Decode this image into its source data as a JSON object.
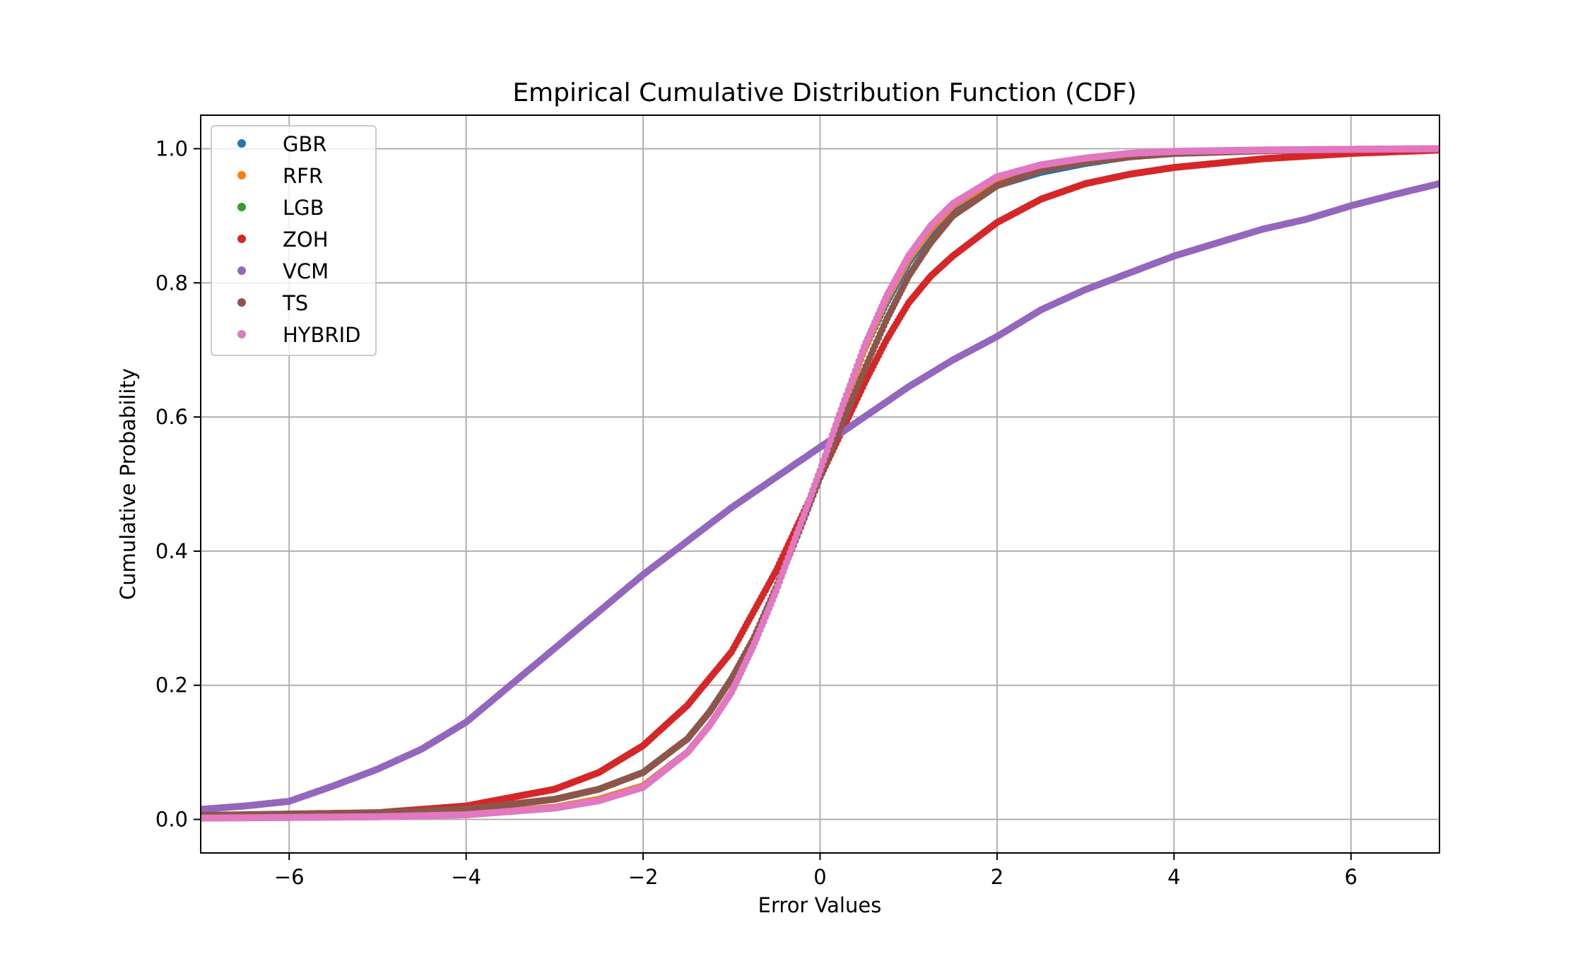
{
  "chart_data": {
    "type": "scatter",
    "title": "Empirical Cumulative Distribution Function (CDF)",
    "xlabel": "Error Values",
    "ylabel": "Cumulative Probability",
    "xlim": [
      -7,
      7
    ],
    "ylim": [
      -0.05,
      1.05
    ],
    "xticks": [
      -6,
      -4,
      -2,
      0,
      2,
      4,
      6
    ],
    "xtick_labels": [
      "−6",
      "−4",
      "−2",
      "0",
      "2",
      "4",
      "6"
    ],
    "yticks": [
      0.0,
      0.2,
      0.4,
      0.6,
      0.8,
      1.0
    ],
    "ytick_labels": [
      "0.0",
      "0.2",
      "0.4",
      "0.6",
      "0.8",
      "1.0"
    ],
    "grid": true,
    "legend_position": "upper-left",
    "series": [
      {
        "name": "GBR",
        "color": "#1f77b4",
        "x": [
          -7,
          -6,
          -5,
          -4,
          -3,
          -2.5,
          -2,
          -1.5,
          -1.25,
          -1,
          -0.75,
          -0.5,
          -0.25,
          0,
          0.25,
          0.5,
          0.75,
          1,
          1.25,
          1.5,
          2,
          2.5,
          3,
          3.5,
          4,
          5,
          6,
          7
        ],
        "y": [
          0.003,
          0.004,
          0.005,
          0.008,
          0.018,
          0.03,
          0.05,
          0.1,
          0.14,
          0.19,
          0.26,
          0.34,
          0.43,
          0.52,
          0.61,
          0.7,
          0.77,
          0.83,
          0.875,
          0.905,
          0.945,
          0.965,
          0.978,
          0.988,
          0.993,
          0.997,
          0.999,
          1.0
        ]
      },
      {
        "name": "RFR",
        "color": "#ff7f0e",
        "x": [
          -7,
          -6,
          -5,
          -4,
          -3,
          -2.5,
          -2,
          -1.5,
          -1.25,
          -1,
          -0.75,
          -0.5,
          -0.25,
          0,
          0.25,
          0.5,
          0.75,
          1,
          1.25,
          1.5,
          2,
          2.5,
          3,
          3.5,
          4,
          5,
          6,
          7
        ],
        "y": [
          0.002,
          0.004,
          0.005,
          0.008,
          0.018,
          0.03,
          0.05,
          0.1,
          0.14,
          0.19,
          0.26,
          0.34,
          0.43,
          0.52,
          0.61,
          0.7,
          0.775,
          0.835,
          0.88,
          0.915,
          0.955,
          0.975,
          0.985,
          0.992,
          0.995,
          0.998,
          0.999,
          1.0
        ]
      },
      {
        "name": "LGB",
        "color": "#2ca02c",
        "x": [
          -7,
          -6,
          -5,
          -4,
          -3,
          -2.5,
          -2,
          -1.5,
          -1.25,
          -1,
          -0.75,
          -0.5,
          -0.25,
          0,
          0.25,
          0.5,
          0.75,
          1,
          1.25,
          1.5,
          2,
          2.5,
          3,
          3.5,
          4,
          5,
          6,
          7
        ],
        "y": [
          0.002,
          0.003,
          0.004,
          0.007,
          0.017,
          0.028,
          0.048,
          0.1,
          0.14,
          0.19,
          0.26,
          0.34,
          0.43,
          0.52,
          0.615,
          0.705,
          0.78,
          0.84,
          0.885,
          0.918,
          0.958,
          0.976,
          0.986,
          0.993,
          0.996,
          0.998,
          0.999,
          1.0
        ]
      },
      {
        "name": "ZOH",
        "color": "#d62728",
        "x": [
          -7,
          -6,
          -5,
          -4,
          -3,
          -2.5,
          -2,
          -1.5,
          -1,
          -0.75,
          -0.5,
          -0.25,
          0,
          0.25,
          0.5,
          0.75,
          1,
          1.25,
          1.5,
          2,
          2.5,
          3,
          3.5,
          4,
          5,
          6,
          7
        ],
        "y": [
          0.005,
          0.007,
          0.01,
          0.02,
          0.045,
          0.07,
          0.11,
          0.17,
          0.25,
          0.31,
          0.37,
          0.44,
          0.51,
          0.58,
          0.65,
          0.715,
          0.77,
          0.81,
          0.84,
          0.89,
          0.925,
          0.948,
          0.962,
          0.972,
          0.985,
          0.993,
          0.998
        ]
      },
      {
        "name": "VCM",
        "color": "#9467bd",
        "x": [
          -7,
          -6.5,
          -6,
          -5.5,
          -5,
          -4.5,
          -4,
          -3.5,
          -3,
          -2.5,
          -2,
          -1.5,
          -1,
          -0.5,
          0,
          0.5,
          1,
          1.5,
          2,
          2.5,
          3,
          3.5,
          4,
          4.5,
          5,
          5.5,
          6,
          6.5,
          7
        ],
        "y": [
          0.015,
          0.02,
          0.027,
          0.05,
          0.075,
          0.105,
          0.145,
          0.2,
          0.255,
          0.31,
          0.365,
          0.415,
          0.465,
          0.51,
          0.555,
          0.6,
          0.645,
          0.685,
          0.72,
          0.76,
          0.79,
          0.815,
          0.84,
          0.86,
          0.88,
          0.895,
          0.915,
          0.932,
          0.948
        ]
      },
      {
        "name": "TS",
        "color": "#8c564b",
        "x": [
          -7,
          -6,
          -5,
          -4,
          -3,
          -2.5,
          -2,
          -1.5,
          -1.25,
          -1,
          -0.75,
          -0.5,
          -0.25,
          0,
          0.25,
          0.5,
          0.75,
          1,
          1.25,
          1.5,
          2,
          2.5,
          3,
          3.5,
          4,
          5,
          6,
          7
        ],
        "y": [
          0.006,
          0.008,
          0.01,
          0.015,
          0.03,
          0.045,
          0.07,
          0.12,
          0.16,
          0.21,
          0.27,
          0.345,
          0.425,
          0.51,
          0.59,
          0.67,
          0.745,
          0.81,
          0.86,
          0.9,
          0.945,
          0.968,
          0.98,
          0.988,
          0.993,
          0.997,
          0.999,
          1.0
        ]
      },
      {
        "name": "HYBRID",
        "color": "#e377c2",
        "x": [
          -7,
          -6,
          -5,
          -4,
          -3,
          -2.5,
          -2,
          -1.5,
          -1.25,
          -1,
          -0.75,
          -0.5,
          -0.25,
          0,
          0.25,
          0.5,
          0.75,
          1,
          1.25,
          1.5,
          2,
          2.5,
          3,
          3.5,
          4,
          5,
          6,
          7
        ],
        "y": [
          0.002,
          0.003,
          0.004,
          0.007,
          0.017,
          0.028,
          0.048,
          0.1,
          0.14,
          0.19,
          0.26,
          0.34,
          0.43,
          0.52,
          0.615,
          0.705,
          0.78,
          0.84,
          0.885,
          0.918,
          0.958,
          0.976,
          0.986,
          0.993,
          0.996,
          0.998,
          0.999,
          1.0
        ]
      }
    ]
  }
}
